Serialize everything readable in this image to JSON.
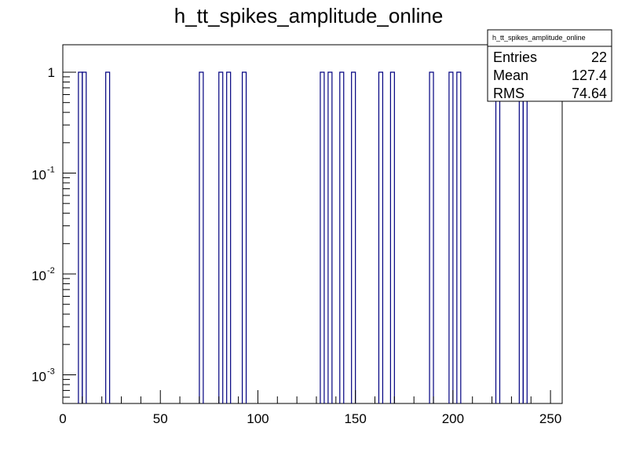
{
  "chart_data": {
    "type": "bar",
    "title": "h_tt_spikes_amplitude_online",
    "xlabel": "",
    "ylabel": "",
    "xlim": [
      0,
      256
    ],
    "ylog": true,
    "grid": false,
    "bin_width": 2,
    "bars": [
      {
        "x": 8,
        "value": 1
      },
      {
        "x": 10,
        "value": 1
      },
      {
        "x": 22,
        "value": 1
      },
      {
        "x": 70,
        "value": 1
      },
      {
        "x": 80,
        "value": 1
      },
      {
        "x": 84,
        "value": 1
      },
      {
        "x": 92,
        "value": 1
      },
      {
        "x": 132,
        "value": 1
      },
      {
        "x": 136,
        "value": 1
      },
      {
        "x": 142,
        "value": 1
      },
      {
        "x": 148,
        "value": 1
      },
      {
        "x": 162,
        "value": 1
      },
      {
        "x": 168,
        "value": 1
      },
      {
        "x": 188,
        "value": 1
      },
      {
        "x": 198,
        "value": 1
      },
      {
        "x": 202,
        "value": 1
      },
      {
        "x": 222,
        "value": 1
      },
      {
        "x": 234,
        "value": 1
      },
      {
        "x": 236,
        "value": 1
      }
    ],
    "x_ticks": [
      {
        "value": 0,
        "label": "0"
      },
      {
        "value": 50,
        "label": "50"
      },
      {
        "value": 100,
        "label": "100"
      },
      {
        "value": 150,
        "label": "150"
      },
      {
        "value": 200,
        "label": "200"
      },
      {
        "value": 250,
        "label": "250"
      }
    ],
    "y_ticks": [
      {
        "value": 1,
        "base": "1",
        "exp": ""
      },
      {
        "value": 0.1,
        "base": "10",
        "exp": "-1"
      },
      {
        "value": 0.01,
        "base": "10",
        "exp": "-2"
      },
      {
        "value": 0.001,
        "base": "10",
        "exp": "-3"
      }
    ],
    "stats_box": {
      "name": "h_tt_spikes_amplitude_online",
      "rows": [
        {
          "label": "Entries",
          "value": "22"
        },
        {
          "label": "Mean",
          "value": "127.4"
        },
        {
          "label": "RMS",
          "value": "74.64"
        }
      ]
    },
    "colors": {
      "line": "#000080",
      "frame": "#000000",
      "background": "#ffffff"
    }
  }
}
